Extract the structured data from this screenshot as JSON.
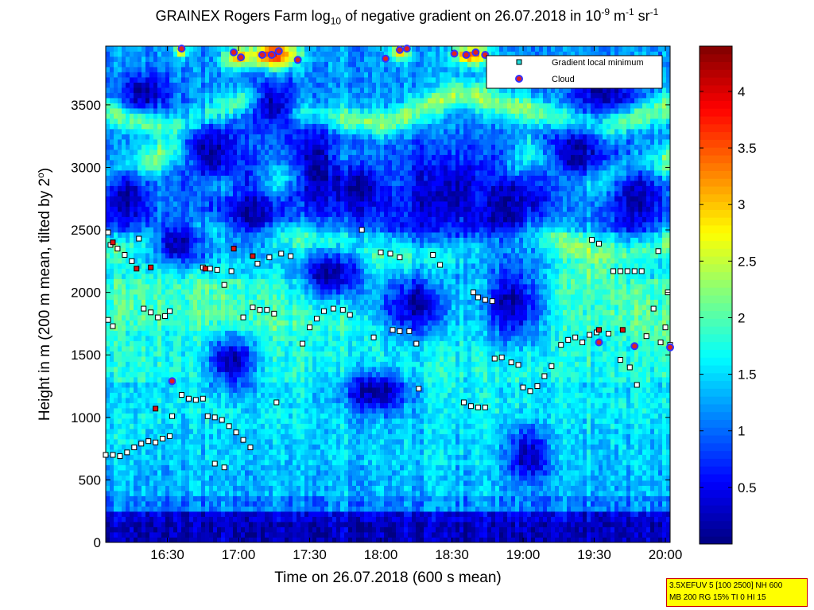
{
  "chart_data": {
    "type": "heatmap",
    "title": {
      "prefix": "GRAINEX Rogers Farm log",
      "sub": "10",
      "middle": " of negative gradient on 26.07.2018 in 10",
      "sup1": "-9",
      "unit1": " m",
      "sup2": "-1",
      "unit2": " sr",
      "sup3": "-1"
    },
    "xlabel": "Time on 26.07.2018 (600 s mean)",
    "ylabel": {
      "text": "Height in m (200 m mean, tilted by 2",
      "sup": "o",
      "end": ")"
    },
    "x_ticks": [
      "16:30",
      "17:00",
      "17:30",
      "18:00",
      "18:30",
      "19:00",
      "19:30",
      "20:00"
    ],
    "y_ticks": [
      "0",
      "500",
      "1000",
      "1500",
      "2000",
      "2500",
      "3000",
      "3500"
    ],
    "x_range": [
      "16:04",
      "20:02"
    ],
    "y_range": [
      0,
      3970
    ],
    "colorbar": {
      "ticks": [
        "0.5",
        "1",
        "1.5",
        "2",
        "2.5",
        "3",
        "3.5",
        "4"
      ],
      "range": [
        0,
        4.4
      ],
      "colormap": "jet"
    },
    "legend": {
      "position": "top-right",
      "entries": [
        {
          "label": "Gradient local minimum",
          "marker": "square",
          "color": "#22dddd"
        },
        {
          "label": "Cloud",
          "marker": "circle",
          "color": "#e02020"
        }
      ]
    },
    "gradient_minima": [
      [
        "16:04",
        700
      ],
      [
        "16:07",
        700
      ],
      [
        "16:10",
        690
      ],
      [
        "16:13",
        720
      ],
      [
        "16:16",
        760
      ],
      [
        "16:19",
        790
      ],
      [
        "16:22",
        810
      ],
      [
        "16:25",
        800
      ],
      [
        "16:28",
        830
      ],
      [
        "16:31",
        850
      ],
      [
        "16:05",
        1780
      ],
      [
        "16:07",
        1730
      ],
      [
        "16:20",
        1870
      ],
      [
        "16:23",
        1840
      ],
      [
        "16:26",
        1800
      ],
      [
        "16:29",
        1810
      ],
      [
        "16:31",
        1850
      ],
      [
        "16:05",
        2480
      ],
      [
        "16:06",
        2380
      ],
      [
        "16:09",
        2350
      ],
      [
        "16:12",
        2300
      ],
      [
        "16:15",
        2250
      ],
      [
        "16:18",
        2430
      ],
      [
        "16:32",
        1010
      ],
      [
        "16:36",
        1180
      ],
      [
        "16:39",
        1150
      ],
      [
        "16:42",
        1140
      ],
      [
        "16:45",
        1150
      ],
      [
        "16:47",
        1010
      ],
      [
        "16:50",
        1000
      ],
      [
        "16:53",
        980
      ],
      [
        "16:56",
        930
      ],
      [
        "16:59",
        880
      ],
      [
        "17:02",
        820
      ],
      [
        "17:05",
        760
      ],
      [
        "16:45",
        2200
      ],
      [
        "16:48",
        2190
      ],
      [
        "16:51",
        2180
      ],
      [
        "16:54",
        2060
      ],
      [
        "16:57",
        2170
      ],
      [
        "16:50",
        630
      ],
      [
        "16:54",
        600
      ],
      [
        "17:02",
        1800
      ],
      [
        "17:06",
        1880
      ],
      [
        "17:09",
        1860
      ],
      [
        "17:12",
        1860
      ],
      [
        "17:15",
        1830
      ],
      [
        "17:08",
        2230
      ],
      [
        "17:13",
        2280
      ],
      [
        "17:18",
        2310
      ],
      [
        "17:22",
        2290
      ],
      [
        "17:16",
        1120
      ],
      [
        "17:27",
        1590
      ],
      [
        "17:30",
        1720
      ],
      [
        "17:33",
        1790
      ],
      [
        "17:36",
        1850
      ],
      [
        "17:40",
        1870
      ],
      [
        "17:44",
        1860
      ],
      [
        "17:47",
        1820
      ],
      [
        "17:52",
        2500
      ],
      [
        "18:00",
        2320
      ],
      [
        "18:04",
        2310
      ],
      [
        "18:08",
        2280
      ],
      [
        "17:57",
        1640
      ],
      [
        "18:05",
        1700
      ],
      [
        "18:08",
        1690
      ],
      [
        "18:12",
        1690
      ],
      [
        "18:15",
        1590
      ],
      [
        "18:16",
        1230
      ],
      [
        "18:22",
        2300
      ],
      [
        "18:25",
        2220
      ],
      [
        "18:35",
        1120
      ],
      [
        "18:38",
        1090
      ],
      [
        "18:41",
        1080
      ],
      [
        "18:44",
        1080
      ],
      [
        "18:39",
        2000
      ],
      [
        "18:41",
        1960
      ],
      [
        "18:44",
        1940
      ],
      [
        "18:47",
        1930
      ],
      [
        "18:48",
        1470
      ],
      [
        "18:51",
        1480
      ],
      [
        "18:55",
        1440
      ],
      [
        "18:58",
        1420
      ],
      [
        "19:00",
        1240
      ],
      [
        "19:03",
        1210
      ],
      [
        "19:06",
        1250
      ],
      [
        "19:09",
        1330
      ],
      [
        "19:12",
        1410
      ],
      [
        "19:16",
        1580
      ],
      [
        "19:19",
        1620
      ],
      [
        "19:22",
        1640
      ],
      [
        "19:25",
        1600
      ],
      [
        "19:28",
        1660
      ],
      [
        "19:31",
        1680
      ],
      [
        "19:36",
        1670
      ],
      [
        "19:38",
        2170
      ],
      [
        "19:41",
        2170
      ],
      [
        "19:44",
        2170
      ],
      [
        "19:47",
        2170
      ],
      [
        "19:50",
        2170
      ],
      [
        "19:29",
        2420
      ],
      [
        "19:32",
        2390
      ],
      [
        "19:41",
        1460
      ],
      [
        "19:45",
        1400
      ],
      [
        "19:48",
        1260
      ],
      [
        "19:52",
        1650
      ],
      [
        "19:55",
        1870
      ],
      [
        "19:58",
        1600
      ],
      [
        "20:00",
        1720
      ],
      [
        "19:57",
        2330
      ],
      [
        "20:01",
        2000
      ],
      [
        "20:02",
        1580
      ]
    ],
    "red_minima": [
      [
        "16:07",
        2400
      ],
      [
        "16:17",
        2190
      ],
      [
        "16:23",
        2200
      ],
      [
        "16:46",
        2190
      ],
      [
        "16:58",
        2350
      ],
      [
        "17:06",
        2290
      ],
      [
        "16:25",
        1070
      ],
      [
        "19:32",
        1700
      ],
      [
        "19:42",
        1700
      ]
    ],
    "clouds": [
      [
        "16:32",
        1290
      ],
      [
        "19:32",
        1600
      ],
      [
        "19:47",
        1570
      ],
      [
        "20:02",
        1560
      ],
      [
        "16:36",
        3950
      ],
      [
        "16:58",
        3920
      ],
      [
        "17:01",
        3880
      ],
      [
        "17:10",
        3900
      ],
      [
        "17:14",
        3900
      ],
      [
        "17:17",
        3930
      ],
      [
        "17:25",
        3860
      ],
      [
        "18:02",
        3870
      ],
      [
        "18:08",
        3940
      ],
      [
        "18:11",
        3950
      ],
      [
        "18:31",
        3910
      ],
      [
        "18:36",
        3900
      ],
      [
        "18:40",
        3920
      ],
      [
        "18:44",
        3900
      ]
    ],
    "field": {
      "layers": [
        {
          "height": [
            0,
            180
          ],
          "value": 0.25
        },
        {
          "height": [
            180,
            260
          ],
          "value": 0.4
        },
        {
          "height": [
            260,
            380
          ],
          "value": 1.1
        },
        {
          "height": [
            380,
            620
          ],
          "value": 1.35
        },
        {
          "height": [
            620,
            900
          ],
          "value": 1.45
        },
        {
          "height": [
            900,
            1300
          ],
          "value": 1.5
        },
        {
          "height": [
            1300,
            1700
          ],
          "value": 1.75
        },
        {
          "height": [
            1700,
            2100
          ],
          "value": 1.9
        },
        {
          "height": [
            2100,
            2500
          ],
          "value": 1.6
        },
        {
          "height": [
            2500,
            3970
          ],
          "value": 1.2
        }
      ],
      "bands": [
        {
          "heights": [
            2900,
            3150,
            2700,
            3100,
            2900,
            2600,
            3100,
            2900,
            3050
          ],
          "width": 140,
          "value": 2.5
        },
        {
          "heights": [
            3450,
            3300,
            3550,
            3400,
            3350,
            3600,
            3450,
            3300,
            3500
          ],
          "width": 110,
          "value": 2.3
        },
        {
          "heights": [
            1800,
            2200,
            1750,
            1850,
            2300,
            1900,
            1950,
            2150,
            1650
          ],
          "width": 160,
          "value": 2.0
        },
        {
          "heights": [
            2350,
            2450,
            2550,
            2400,
            2250,
            2350,
            2500,
            2300,
            2400
          ],
          "width": 120,
          "value": 2.35
        },
        {
          "heights": [
            800,
            1150,
            1000,
            1050,
            1150,
            1250,
            1050,
            1150,
            1100
          ],
          "width": 150,
          "value": 1.6
        }
      ],
      "voids": [
        {
          "t": "16:12",
          "h": 2750,
          "dt": 10,
          "dh": 300
        },
        {
          "t": "16:48",
          "h": 3100,
          "dt": 14,
          "dh": 280
        },
        {
          "t": "17:05",
          "h": 2650,
          "dt": 16,
          "dh": 260
        },
        {
          "t": "17:32",
          "h": 3050,
          "dt": 12,
          "dh": 320
        },
        {
          "t": "17:50",
          "h": 2850,
          "dt": 18,
          "dh": 250
        },
        {
          "t": "18:25",
          "h": 2750,
          "dt": 22,
          "dh": 400
        },
        {
          "t": "18:52",
          "h": 2700,
          "dt": 18,
          "dh": 350
        },
        {
          "t": "19:22",
          "h": 3100,
          "dt": 14,
          "dh": 250
        },
        {
          "t": "19:48",
          "h": 2750,
          "dt": 12,
          "dh": 350
        },
        {
          "t": "17:40",
          "h": 2150,
          "dt": 14,
          "dh": 220
        },
        {
          "t": "18:15",
          "h": 1900,
          "dt": 16,
          "dh": 260
        },
        {
          "t": "18:55",
          "h": 1900,
          "dt": 14,
          "dh": 300
        },
        {
          "t": "16:35",
          "h": 2400,
          "dt": 12,
          "dh": 200
        },
        {
          "t": "19:02",
          "h": 700,
          "dt": 8,
          "dh": 220
        },
        {
          "t": "16:57",
          "h": 1450,
          "dt": 10,
          "dh": 200
        },
        {
          "t": "17:58",
          "h": 1200,
          "dt": 14,
          "dh": 180
        },
        {
          "t": "19:35",
          "h": 3600,
          "dt": 14,
          "dh": 150
        },
        {
          "t": "16:20",
          "h": 3600,
          "dt": 10,
          "dh": 150
        },
        {
          "t": "17:15",
          "h": 3500,
          "dt": 10,
          "dh": 200
        }
      ],
      "hot": [
        {
          "t": "17:15",
          "h": 3900,
          "dt": 10,
          "dh": 100,
          "value": 3.8
        },
        {
          "t": "17:00",
          "h": 3880,
          "dt": 6,
          "dh": 80,
          "value": 3.2
        },
        {
          "t": "18:38",
          "h": 3900,
          "dt": 7,
          "dh": 80,
          "value": 3.4
        },
        {
          "t": "18:08",
          "h": 3920,
          "dt": 4,
          "dh": 60,
          "value": 3.0
        },
        {
          "t": "16:36",
          "h": 3930,
          "dt": 3,
          "dh": 50,
          "value": 3.0
        }
      ]
    }
  },
  "info_box": {
    "line1": "3.5XEFUV 5 [100 2500] NH 600",
    "line2": "MB 200 RG 15% TI 0 HI 15"
  }
}
